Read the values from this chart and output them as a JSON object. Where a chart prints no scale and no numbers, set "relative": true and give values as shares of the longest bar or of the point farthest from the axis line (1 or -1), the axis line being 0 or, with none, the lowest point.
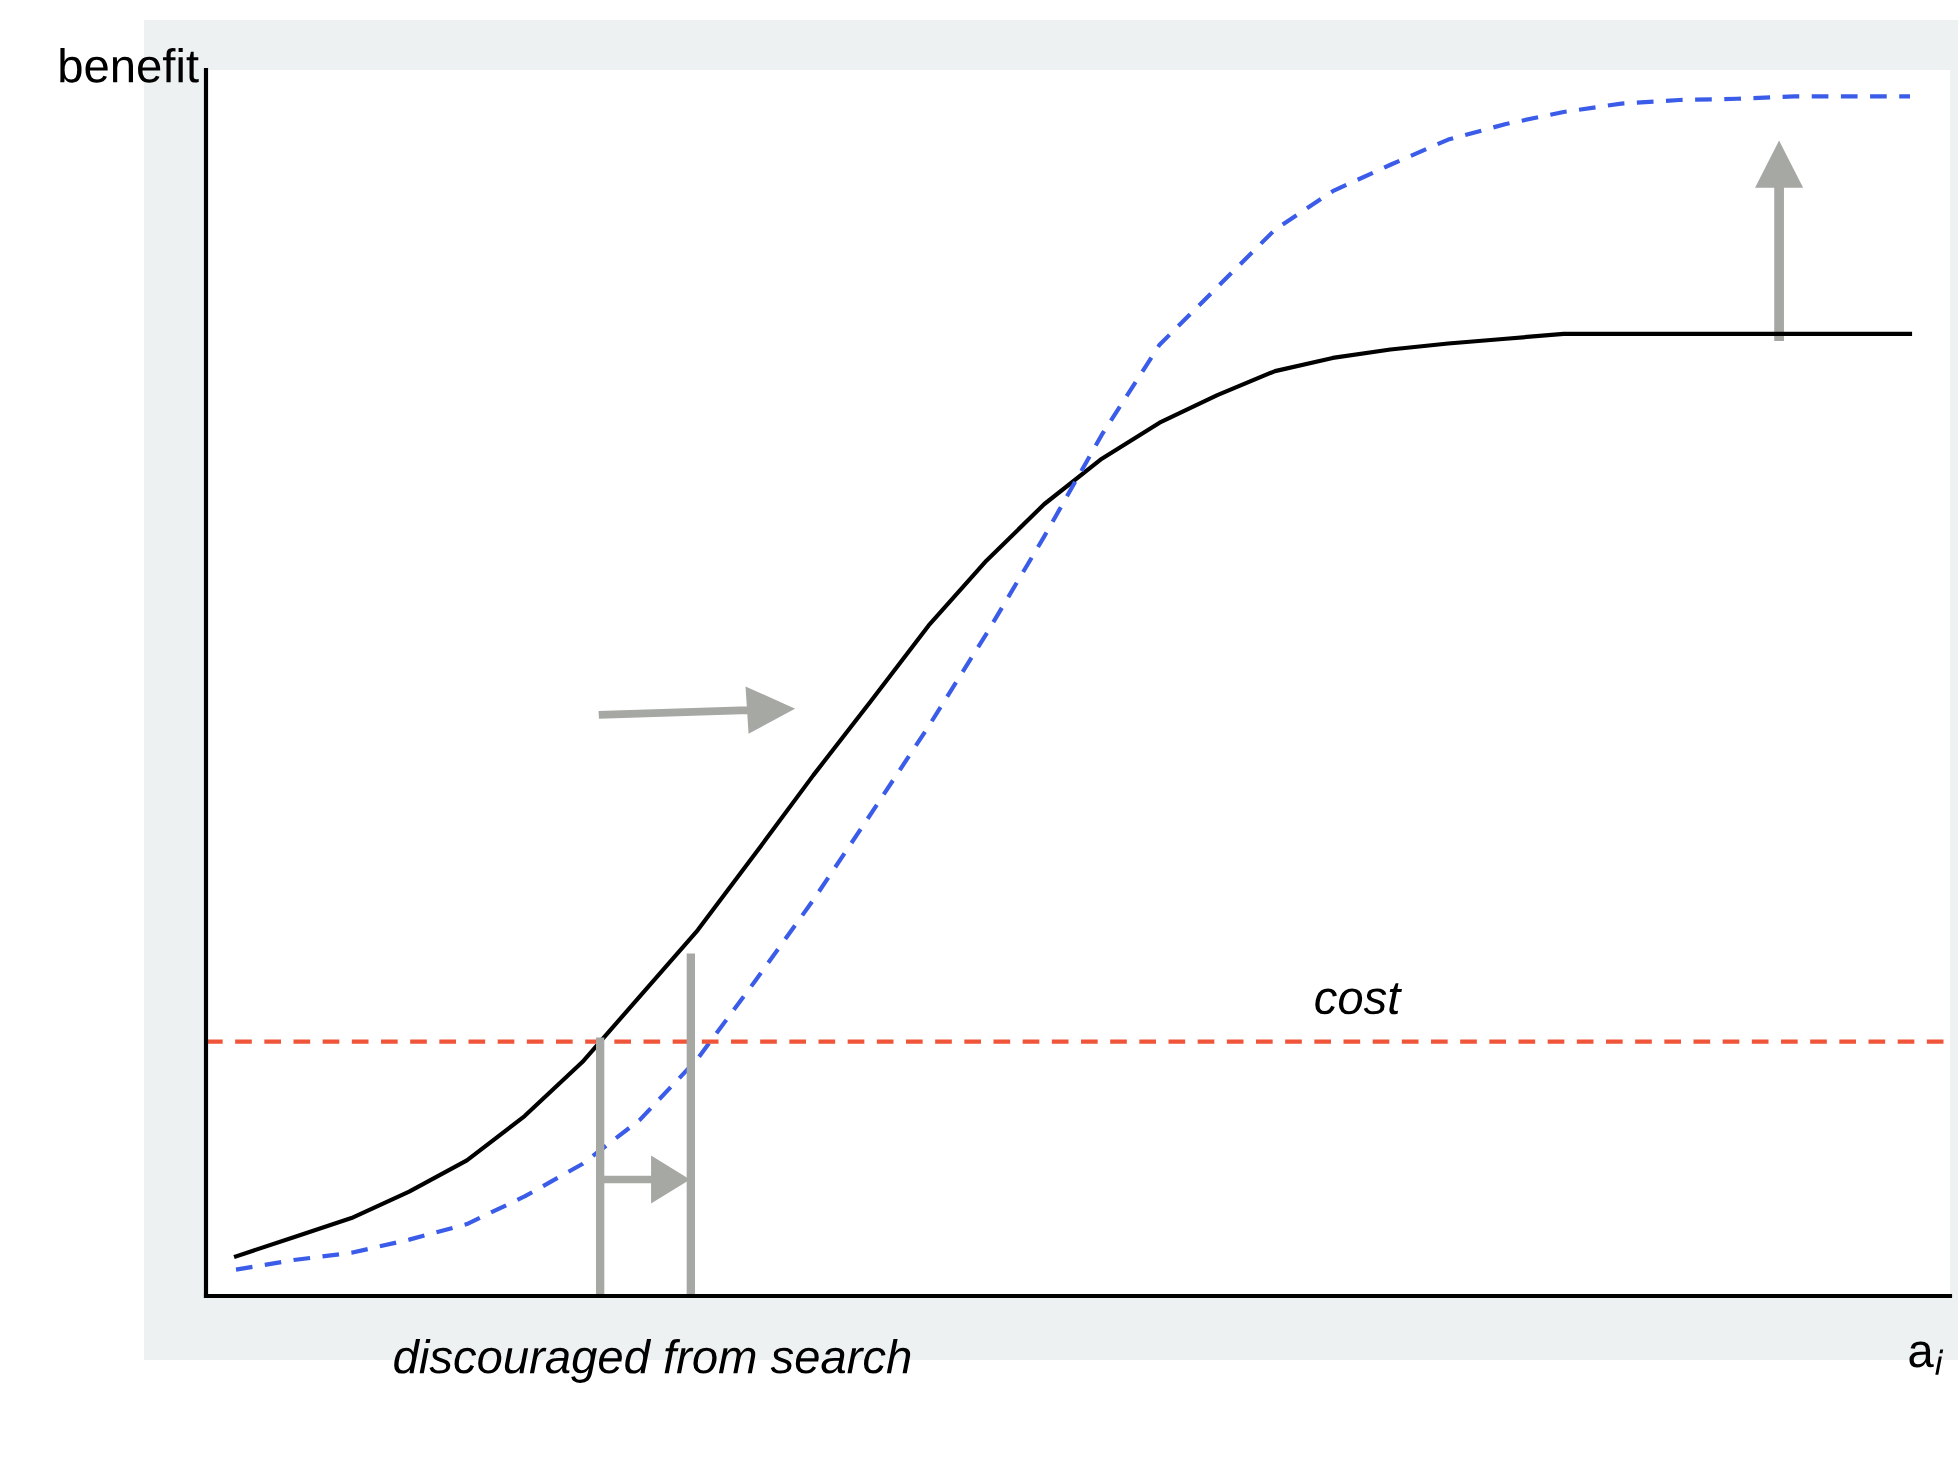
{
  "chart_data": {
    "type": "line",
    "relative": true,
    "ylabel": "benefit",
    "xlabel": "a$_{i}$",
    "legend": false,
    "marker": "none",
    "categories": [
      null,
      null,
      null,
      null,
      null,
      null,
      null,
      null,
      null,
      null,
      null,
      null,
      null,
      null,
      null,
      null,
      null,
      null,
      null,
      null,
      null,
      null,
      null,
      null,
      null,
      null,
      null,
      null,
      null,
      null
    ],
    "annotations": [
      "discouraged from search"
    ],
    "ref_lines": [
      {
        "axis": "y",
        "value": 0.212,
        "label": "cost",
        "color": "#f0553a",
        "line_style": "dashed"
      }
    ],
    "series": [
      {
        "color": "#000000",
        "line_style": "solid",
        "values": [
          0.033,
          0.049,
          0.065,
          0.087,
          0.113,
          0.15,
          0.195,
          0.25,
          0.305,
          0.369,
          0.434,
          0.496,
          0.559,
          0.613,
          0.66,
          0.698,
          0.728,
          0.751,
          0.771,
          0.782,
          0.789,
          0.794,
          0.798,
          0.802,
          0.802,
          0.802,
          0.802,
          0.802,
          0.802,
          0.802
        ]
      },
      {
        "color": "#3a5ce8",
        "line_style": "dashed",
        "values": [
          0.022,
          0.03,
          0.036,
          0.047,
          0.06,
          0.083,
          0.11,
          0.147,
          0.198,
          0.263,
          0.33,
          0.402,
          0.475,
          0.552,
          0.633,
          0.718,
          0.793,
          0.841,
          0.889,
          0.921,
          0.943,
          0.964,
          0.977,
          0.987,
          0.994,
          0.997,
          0.998,
          1,
          1,
          1
        ]
      }
    ]
  }
}
